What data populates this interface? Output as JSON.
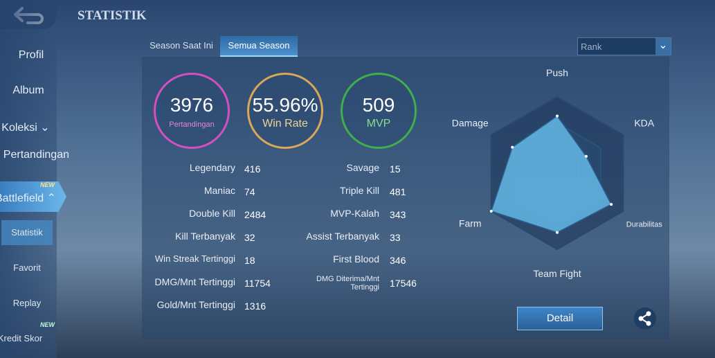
{
  "header": {
    "title": "STATISTIK"
  },
  "sidebar": {
    "items": [
      "Profil",
      "Album",
      "Koleksi",
      "Hasil Pertandingan",
      "Battlefield",
      "Statistik",
      "Favorit",
      "Replay",
      "Kredit Skor"
    ],
    "badges": [
      "NEW",
      "NEW"
    ]
  },
  "tabs": [
    "Season Saat Ini",
    "Semua Season"
  ],
  "dropdown": "Rank",
  "summary": [
    {
      "value": 3976,
      "label": "Pertandingan"
    },
    {
      "value": "55.96%",
      "label": "Win Rate"
    },
    {
      "value": 509,
      "label": "MVP"
    }
  ],
  "stats": {
    "left": [
      [
        "Legendary",
        416
      ],
      [
        "Maniac",
        74
      ],
      [
        "Double Kill",
        2484
      ],
      [
        "Kill Terbanyak",
        32
      ],
      [
        "Win Streak Tertinggi",
        18
      ],
      [
        "DMG/Mnt Tertinggi",
        11754
      ],
      [
        "Gold/Mnt Tertinggi",
        1316
      ]
    ],
    "right": [
      [
        "Savage",
        15
      ],
      [
        "Triple Kill",
        481
      ],
      [
        "MVP-Kalah",
        343
      ],
      [
        "Assist Terbanyak",
        33
      ],
      [
        "First Blood",
        346
      ],
      [
        "DMG Diterima/Mnt Tertinggi",
        17546
      ]
    ]
  },
  "radar": {
    "type": "radar",
    "axes": [
      "Push",
      "KDA",
      "Durabilitas",
      "Team Fight",
      "Farm",
      "Damage"
    ],
    "values": [
      75,
      44,
      82,
      78,
      100,
      68
    ],
    "max": 100
  },
  "button": "Detail"
}
